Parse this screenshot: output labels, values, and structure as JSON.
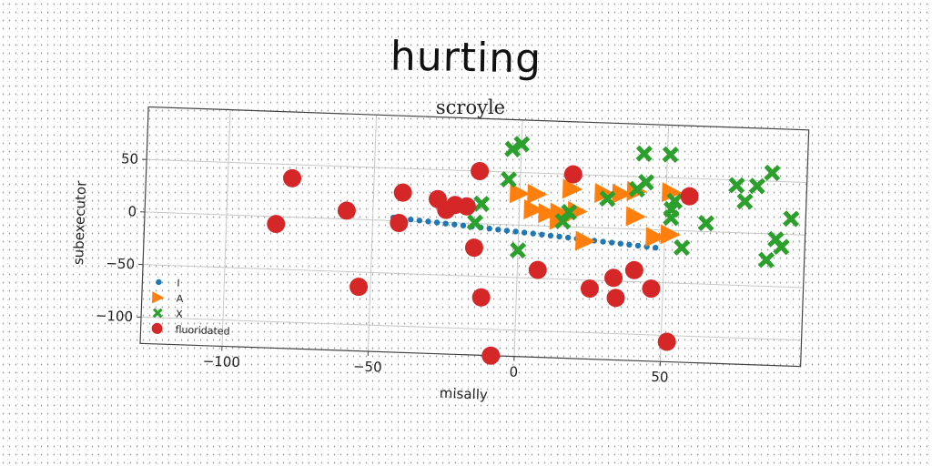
{
  "page": {
    "main_title": "hurting"
  },
  "chart_data": {
    "type": "scatter",
    "title": "scroyle",
    "xlabel": "misally",
    "ylabel": "subexecutor",
    "xlim": [
      -128,
      98
    ],
    "ylim": [
      -125,
      100
    ],
    "xticks": [
      -100,
      -50,
      0,
      50
    ],
    "yticks": [
      -100,
      -50,
      0,
      50
    ],
    "grid": true,
    "legend_position": "lower-left",
    "series": [
      {
        "name": "I",
        "marker": "dot",
        "color": "#1f77b4",
        "points": [
          [
            -43,
            3
          ],
          [
            -40,
            2.4
          ],
          [
            -37,
            1.7
          ],
          [
            -34,
            1
          ],
          [
            -31,
            0.4
          ],
          [
            -28,
            -0.3
          ],
          [
            -25,
            -1
          ],
          [
            -22,
            -1.6
          ],
          [
            -19,
            -2.3
          ],
          [
            -16,
            -3
          ],
          [
            -13,
            -3.6
          ],
          [
            -10,
            -4.3
          ],
          [
            -7,
            -5
          ],
          [
            -4,
            -5.7
          ],
          [
            -1,
            -6.3
          ],
          [
            2,
            -7
          ],
          [
            5,
            -7.6
          ],
          [
            8,
            -8.3
          ],
          [
            11,
            -9
          ],
          [
            14,
            -9.6
          ],
          [
            17,
            -10.3
          ],
          [
            20,
            -11
          ],
          [
            23,
            -11.6
          ],
          [
            26,
            -12.3
          ],
          [
            29,
            -13
          ],
          [
            32,
            -13.6
          ],
          [
            35,
            -14.3
          ],
          [
            38,
            -15
          ],
          [
            41,
            -15.6
          ],
          [
            44,
            -16.3
          ],
          [
            47,
            -17
          ]
        ]
      },
      {
        "name": "A",
        "marker": "triangle-right",
        "color": "#ff7f0e",
        "points": [
          [
            0,
            30
          ],
          [
            6,
            30
          ],
          [
            18,
            36
          ],
          [
            29,
            33
          ],
          [
            35,
            33
          ],
          [
            40,
            36
          ],
          [
            5,
            15
          ],
          [
            10,
            12
          ],
          [
            14,
            13
          ],
          [
            20,
            15
          ],
          [
            14,
            6
          ],
          [
            40,
            12
          ],
          [
            23,
            -13
          ],
          [
            47,
            -7
          ],
          [
            52,
            -4
          ],
          [
            52,
            36
          ]
        ]
      },
      {
        "name": "X",
        "marker": "x",
        "color": "#2ca02c",
        "points": [
          [
            -3,
            72
          ],
          [
            0,
            77
          ],
          [
            -4,
            43
          ],
          [
            42,
            72
          ],
          [
            51,
            72
          ],
          [
            30,
            28
          ],
          [
            40,
            38
          ],
          [
            43,
            45
          ],
          [
            53,
            28
          ],
          [
            52,
            20
          ],
          [
            52,
            12
          ],
          [
            17,
            14
          ],
          [
            15,
            5
          ],
          [
            -13,
            19
          ],
          [
            -15,
            1
          ],
          [
            0,
            -24
          ],
          [
            64,
            8
          ],
          [
            74,
            45
          ],
          [
            77,
            30
          ],
          [
            81,
            45
          ],
          [
            86,
            58
          ],
          [
            93,
            15
          ],
          [
            88,
            -5
          ],
          [
            85,
            -25
          ],
          [
            90,
            -12
          ],
          [
            56,
            -16
          ]
        ]
      },
      {
        "name": "fluoridated",
        "marker": "circle",
        "color": "#d62728",
        "points": [
          [
            -83,
            -7
          ],
          [
            -78,
            37
          ],
          [
            -59,
            8
          ],
          [
            -54,
            -64
          ],
          [
            -40,
            27
          ],
          [
            -41,
            -2
          ],
          [
            -28,
            22
          ],
          [
            -25,
            12
          ],
          [
            -22,
            17
          ],
          [
            -18,
            16
          ],
          [
            -15,
            -23
          ],
          [
            -14,
            50
          ],
          [
            -12,
            -70
          ],
          [
            -8,
            -125
          ],
          [
            7,
            -42
          ],
          [
            18,
            50
          ],
          [
            25,
            -58
          ],
          [
            33,
            -47
          ],
          [
            34,
            -66
          ],
          [
            40,
            -39
          ],
          [
            46,
            -56
          ],
          [
            52,
            -106
          ],
          [
            58,
            33
          ]
        ]
      }
    ]
  }
}
